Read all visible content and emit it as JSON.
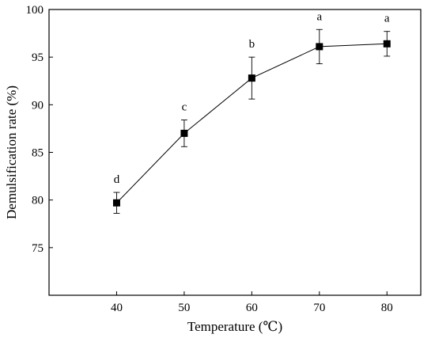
{
  "chart_data": {
    "type": "line",
    "title": "",
    "xlabel": "Temperature (℃)",
    "ylabel": "Demulsification rate (%)",
    "x": [
      40,
      50,
      60,
      70,
      80
    ],
    "xlim": [
      30,
      85
    ],
    "ylim": [
      70,
      100
    ],
    "xticks": [
      40,
      50,
      60,
      70,
      80
    ],
    "yticks": [
      75,
      80,
      85,
      90,
      95,
      100
    ],
    "grid": false,
    "legend": "none",
    "series": [
      {
        "values": [
          79.7,
          87.0,
          92.8,
          96.1,
          96.4
        ],
        "errors": [
          1.1,
          1.4,
          2.2,
          1.8,
          1.3
        ],
        "marker": "square",
        "color": "#000000",
        "labels": [
          "d",
          "c",
          "b",
          "a",
          "a"
        ]
      }
    ]
  }
}
